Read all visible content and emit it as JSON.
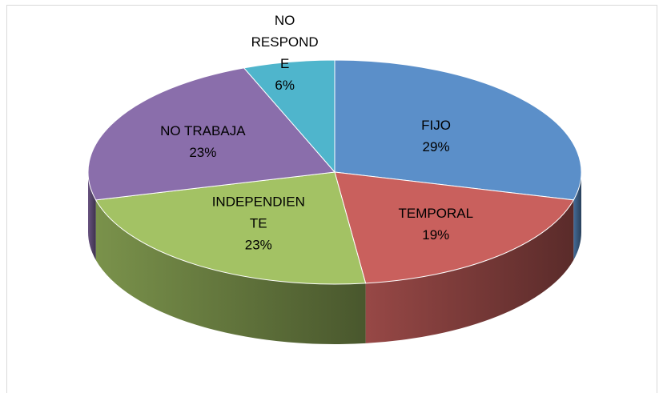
{
  "chart_data": {
    "type": "pie3d",
    "categories": [
      "FIJO",
      "TEMPORAL",
      "INDEPENDIENTE",
      "NO TRABAJA",
      "NO RESPONDE"
    ],
    "values": [
      29,
      19,
      23,
      23,
      6
    ],
    "value_labels": [
      "29%",
      "19%",
      "23%",
      "23%",
      "6%"
    ],
    "colors": [
      "#5b8fc9",
      "#c9605d",
      "#a3c264",
      "#8a6eab",
      "#4fb5cc"
    ]
  }
}
